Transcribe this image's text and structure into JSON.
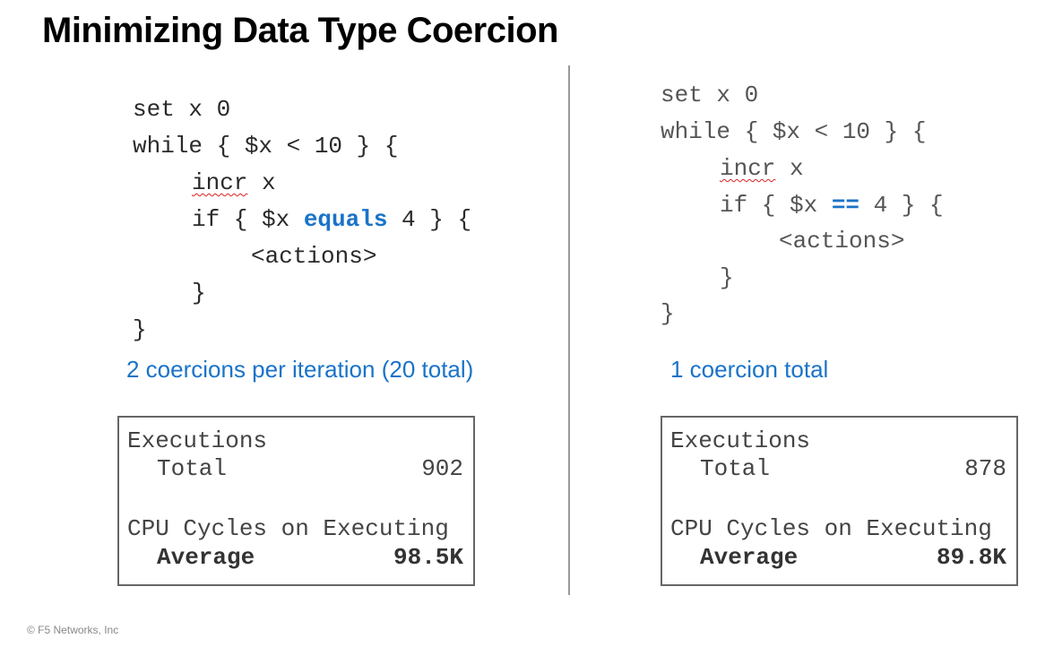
{
  "title": "Minimizing Data Type Coercion",
  "left": {
    "code": [
      [
        "set x 0"
      ],
      [
        "while { $x < 10 } {"
      ],
      [
        "incr",
        " x"
      ],
      [
        "if { $x ",
        "equals",
        " 4 } {"
      ],
      [
        "<actions>"
      ],
      [
        "}"
      ],
      [
        "}"
      ]
    ],
    "note": "2 coercions per iteration (20 total)",
    "stats": {
      "heading": "Executions",
      "total_label": "Total",
      "total": 902,
      "cpu_heading": "CPU Cycles on Executing",
      "average_label": "Average",
      "average": "98.5K"
    }
  },
  "right": {
    "code": [
      [
        "set x 0"
      ],
      [
        "while { $x < 10 } {"
      ],
      [
        "incr",
        " x"
      ],
      [
        "if { $x ",
        "==",
        " 4 } {"
      ],
      [
        "<actions>"
      ],
      [
        "}"
      ],
      [
        "}"
      ]
    ],
    "note": "1 coercion total",
    "stats": {
      "heading": "Executions",
      "total_label": "Total",
      "total": 878,
      "cpu_heading": "CPU Cycles on Executing",
      "average_label": "Average",
      "average": "89.8K"
    }
  },
  "footer": "© F5 Networks, Inc"
}
